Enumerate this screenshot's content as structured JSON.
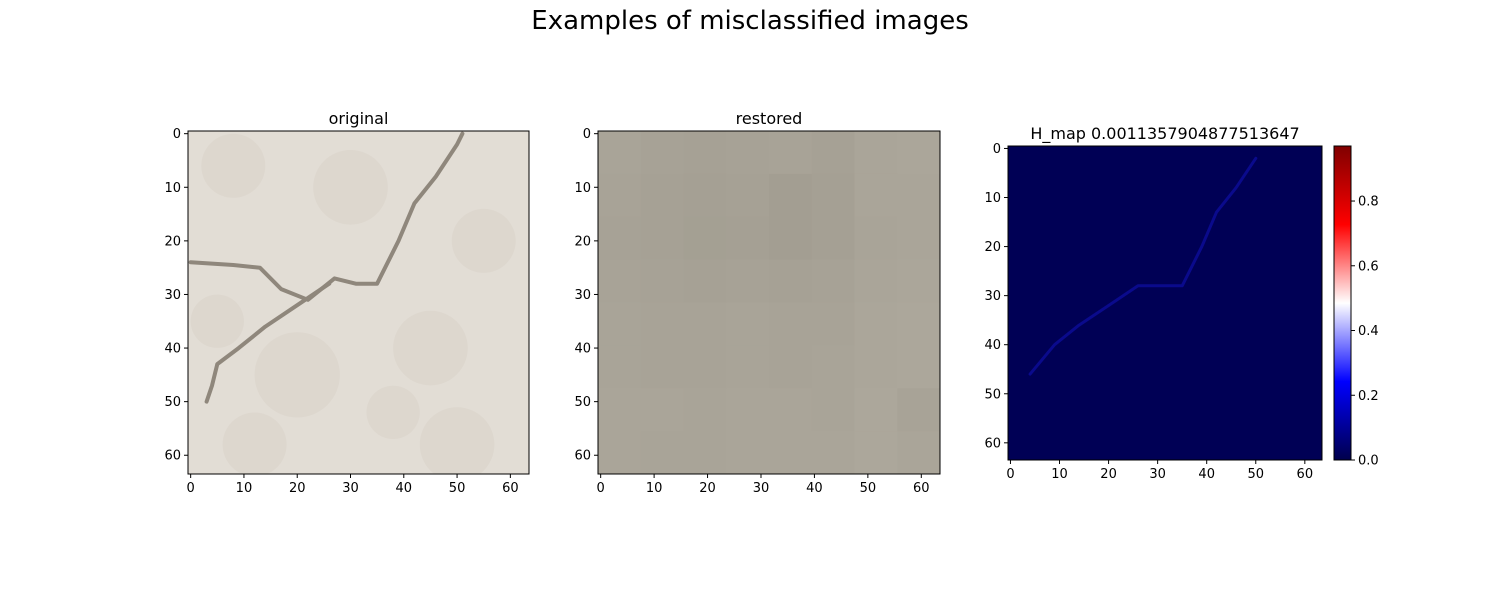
{
  "figure": {
    "title": "Examples of misclassified images"
  },
  "chart_data": [
    {
      "type": "heatmap",
      "title": "original",
      "xlim": [
        -0.5,
        63.5
      ],
      "ylim": [
        63.5,
        -0.5
      ],
      "xticks": [
        0,
        10,
        20,
        30,
        40,
        50,
        60
      ],
      "yticks": [
        0,
        10,
        20,
        30,
        40,
        50,
        60
      ],
      "grid": false,
      "background_color": "#e2ddd5",
      "crack_color": "#8f877c",
      "crack_path": [
        [
          0,
          24
        ],
        [
          8,
          24.5
        ],
        [
          13,
          25
        ],
        [
          17,
          29
        ],
        [
          22,
          31
        ],
        [
          27,
          27
        ],
        [
          31,
          28
        ],
        [
          35,
          28
        ],
        [
          39,
          20
        ],
        [
          42,
          13
        ],
        [
          46,
          8
        ],
        [
          50,
          2
        ],
        [
          51,
          0
        ]
      ],
      "crack_path_lower": [
        [
          26,
          28
        ],
        [
          20,
          32
        ],
        [
          14,
          36
        ],
        [
          9,
          40
        ],
        [
          5,
          43
        ],
        [
          4,
          47
        ],
        [
          3,
          50
        ]
      ]
    },
    {
      "type": "heatmap",
      "title": "restored",
      "xlim": [
        -0.5,
        63.5
      ],
      "ylim": [
        63.5,
        -0.5
      ],
      "xticks": [
        0,
        10,
        20,
        30,
        40,
        50,
        60
      ],
      "yticks": [
        0,
        10,
        20,
        30,
        40,
        50,
        60
      ],
      "grid": false,
      "block_size": 8,
      "block_colors": [
        [
          "#a9a498",
          "#a7a296",
          "#a6a195",
          "#a7a296",
          "#a8a397",
          "#a6a195",
          "#aaa599",
          "#aba69a"
        ],
        [
          "#a8a397",
          "#a6a195",
          "#a5a094",
          "#a6a195",
          "#a39e92",
          "#a5a094",
          "#aaa599",
          "#aaa599"
        ],
        [
          "#a7a296",
          "#a6a195",
          "#a4a093",
          "#a5a094",
          "#a39e92",
          "#a5a094",
          "#a9a498",
          "#aaa599"
        ],
        [
          "#a8a397",
          "#a7a296",
          "#a6a195",
          "#a7a296",
          "#a6a195",
          "#a7a296",
          "#aaa599",
          "#aba69a"
        ],
        [
          "#a9a498",
          "#a8a397",
          "#a8a397",
          "#a9a498",
          "#a8a397",
          "#a8a397",
          "#aba69a",
          "#aca79b"
        ],
        [
          "#a9a498",
          "#a8a397",
          "#a8a397",
          "#a9a498",
          "#a8a397",
          "#a9a498",
          "#aba69a",
          "#aca79b"
        ],
        [
          "#aaa599",
          "#aaa599",
          "#a9a498",
          "#aaa599",
          "#aaa599",
          "#a9a498",
          "#aca79b",
          "#a8a397"
        ],
        [
          "#aaa599",
          "#a9a498",
          "#a9a498",
          "#aaa599",
          "#aaa599",
          "#aaa599",
          "#aca79b",
          "#aaa599"
        ]
      ]
    },
    {
      "type": "heatmap",
      "title": "H_map  0.0011357904877513647",
      "xlim": [
        -0.5,
        63.5
      ],
      "ylim": [
        63.5,
        -0.5
      ],
      "xticks": [
        0,
        10,
        20,
        30,
        40,
        50,
        60
      ],
      "yticks": [
        0,
        10,
        20,
        30,
        40,
        50,
        60
      ],
      "grid": false,
      "background_color": "#000055",
      "trace_color": "#0a0a8c",
      "crack_path": [
        [
          4,
          46
        ],
        [
          9,
          40
        ],
        [
          14,
          36
        ],
        [
          20,
          32
        ],
        [
          26,
          28
        ],
        [
          31,
          28
        ],
        [
          35,
          28
        ],
        [
          39,
          20
        ],
        [
          42,
          13
        ],
        [
          46,
          8
        ],
        [
          50,
          2
        ]
      ],
      "colorbar": {
        "colormap": "seismic",
        "range": [
          0,
          0.97
        ],
        "ticks": [
          0.0,
          0.2,
          0.4,
          0.6,
          0.8
        ],
        "tick_labels": [
          "0.0",
          "0.2",
          "0.4",
          "0.6",
          "0.8"
        ]
      }
    }
  ]
}
